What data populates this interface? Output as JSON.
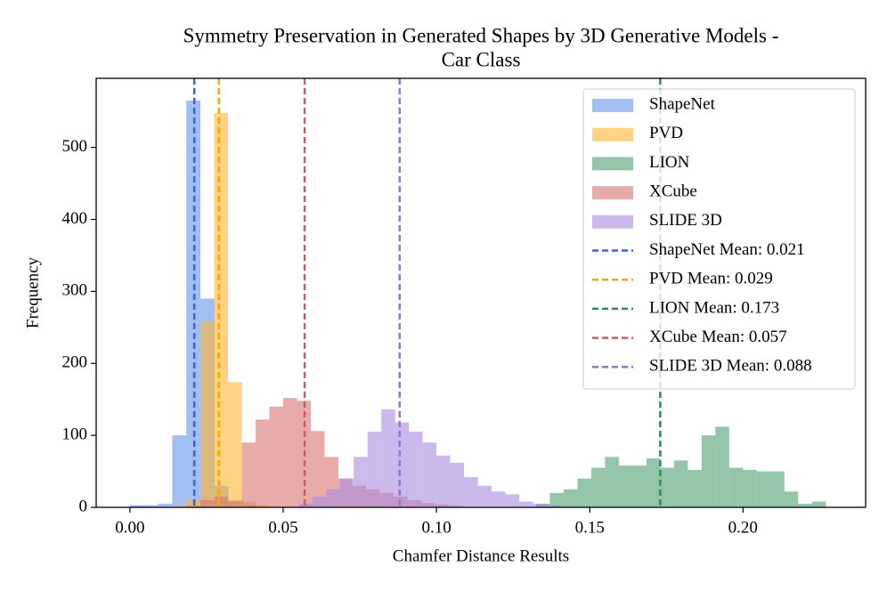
{
  "chart_data": {
    "type": "histogram",
    "title": [
      "Symmetry Preservation in Generated Shapes by 3D Generative Models -",
      "Car Class"
    ],
    "x_label": "Chamfer Distance Results",
    "y_label": "Frequency",
    "xlim": [
      -0.011,
      0.24
    ],
    "ylim": [
      0,
      596
    ],
    "xticks": [
      {
        "value": 0,
        "label": "0.00"
      },
      0.05,
      {
        "value": 0.1,
        "label": "0.10"
      },
      0.15,
      {
        "value": 0.2,
        "label": "0.20"
      }
    ],
    "yticks": [
      0,
      100,
      200,
      300,
      400,
      500
    ],
    "alpha": 0.6,
    "legend": "upper right",
    "series": [
      {
        "name": "ShapeNet",
        "color": "#6495ed",
        "bins": [
          0,
          0.0046,
          0.0092,
          0.0138,
          0.0184,
          0.023,
          0.0276,
          0.0322,
          0.0368,
          0.0414
        ],
        "values": [
          3,
          3,
          5,
          100,
          565,
          290,
          30,
          10,
          3
        ]
      },
      {
        "name": "PVD",
        "color": "#ffb52e",
        "bins": [
          0.014,
          0.0185,
          0.023,
          0.0275,
          0.032,
          0.0365,
          0.041,
          0.0455
        ],
        "values": [
          2,
          10,
          258,
          548,
          174,
          8,
          3
        ]
      },
      {
        "name": "LION",
        "color": "#4c9f70",
        "bins": [
          0.1325,
          0.137,
          0.1415,
          0.146,
          0.1505,
          0.155,
          0.1595,
          0.164,
          0.1685,
          0.173,
          0.1775,
          0.182,
          0.1865,
          0.191,
          0.1955,
          0.2,
          0.2045,
          0.209,
          0.2135,
          0.218,
          0.2225,
          0.227
        ],
        "values": [
          5,
          20,
          25,
          40,
          55,
          70,
          58,
          58,
          68,
          55,
          65,
          52,
          100,
          112,
          55,
          52,
          50,
          50,
          22,
          5,
          8
        ]
      },
      {
        "name": "XCube",
        "color": "#d9736f",
        "bins": [
          0.0185,
          0.023,
          0.0275,
          0.032,
          0.0365,
          0.041,
          0.0455,
          0.05,
          0.0545,
          0.059,
          0.0635,
          0.068,
          0.0725,
          0.077,
          0.0815,
          0.086,
          0.0905,
          0.095,
          0.0995,
          0.104,
          0.1085
        ],
        "values": [
          2,
          10,
          15,
          8,
          90,
          122,
          140,
          152,
          148,
          106,
          70,
          40,
          30,
          25,
          20,
          15,
          10,
          6,
          4,
          2
        ]
      },
      {
        "name": "SLIDE 3D",
        "color": "#a98be0",
        "bins": [
          0.055,
          0.0595,
          0.064,
          0.0685,
          0.073,
          0.0775,
          0.082,
          0.0865,
          0.091,
          0.0955,
          0.1,
          0.1045,
          0.109,
          0.1135,
          0.118,
          0.1225,
          0.127,
          0.1315,
          0.136,
          0.1405
        ],
        "values": [
          5,
          15,
          25,
          40,
          70,
          105,
          136,
          118,
          105,
          90,
          72,
          62,
          42,
          30,
          22,
          18,
          8,
          5,
          3
        ]
      }
    ],
    "mean_lines": [
      {
        "name": "ShapeNet Mean: 0.021",
        "value": 0.021,
        "color": "#3b62d9"
      },
      {
        "name": "PVD Mean: 0.029",
        "value": 0.029,
        "color": "#ffa500"
      },
      {
        "name": "LION Mean: 0.173",
        "value": 0.173,
        "color": "#2e8b57"
      },
      {
        "name": "XCube Mean: 0.057",
        "value": 0.057,
        "color": "#cd5c5c"
      },
      {
        "name": "SLIDE 3D Mean: 0.088",
        "value": 0.088,
        "color": "#9370db"
      }
    ]
  }
}
